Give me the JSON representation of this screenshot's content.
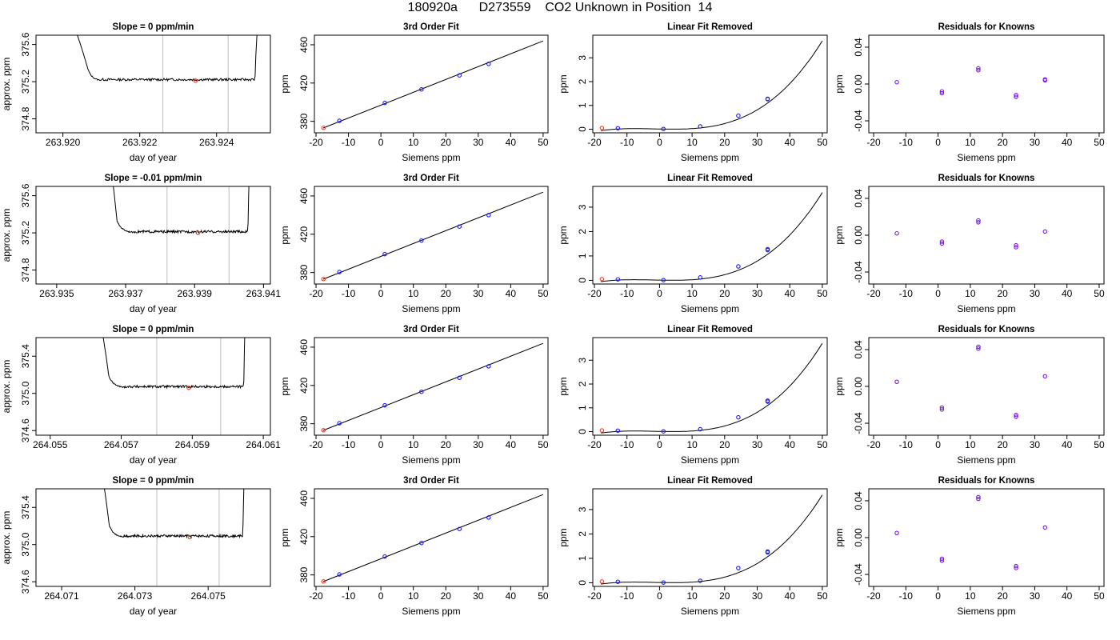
{
  "title": "180920a      D273559    CO2 Unknown in Position  14",
  "colors": {
    "line": "#000000",
    "unknown_point": "#e8402a",
    "known_point": "#1a1aff",
    "residual_point": "#7a1ae8",
    "window_line": "#c8c8c8",
    "frame": "#000000"
  },
  "chart_data": [
    {
      "type": "line",
      "title": "Slope =  0  ppm/min",
      "xlabel": "day of year",
      "ylabel": "approx. ppm",
      "xlim": [
        263.9193,
        263.9254
      ],
      "ylim": [
        374.65,
        375.7
      ],
      "xticks": [
        263.92,
        263.922,
        263.924
      ],
      "xtick_labels": [
        "263.920",
        "263.922",
        "263.924"
      ],
      "yticks": [
        374.8,
        375.2,
        375.6
      ],
      "ytick_labels": [
        "374.8",
        "375.2",
        "375.6"
      ],
      "x_start": 263.92,
      "x_end": 263.9251,
      "plateau": 375.21,
      "drop_x": 263.92065,
      "settle_x": 263.921,
      "rise_x": 263.925,
      "window": [
        263.9226,
        263.9243
      ],
      "marker": [
        263.92345,
        375.21
      ]
    },
    {
      "type": "scatter",
      "title": "3rd Order Fit",
      "xlabel": "Siemens ppm",
      "ylabel": "ppm",
      "xlim": [
        -20.5,
        51.5
      ],
      "ylim": [
        368,
        470
      ],
      "xticks": [
        -20,
        -10,
        0,
        10,
        20,
        30,
        40,
        50
      ],
      "xtick_labels": [
        "-20",
        "-10",
        "0",
        "10",
        "20",
        "30",
        "40",
        "50"
      ],
      "yticks": [
        380,
        420,
        460
      ],
      "ytick_labels": [
        "380",
        "420",
        "460"
      ],
      "fit_line": [
        [
          -17.8,
          373.0
        ],
        [
          50.0,
          464.0
        ]
      ],
      "known_points": [
        [
          -12.8,
          380.5
        ],
        [
          1.2,
          399.2
        ],
        [
          12.5,
          413.4
        ],
        [
          24.2,
          428.0
        ],
        [
          33.2,
          440.0
        ]
      ],
      "unknown_point": [
        -17.7,
        373.2
      ]
    },
    {
      "type": "scatter",
      "title": "Linear Fit Removed",
      "xlabel": "Siemens ppm",
      "ylabel": "ppm",
      "xlim": [
        -20.5,
        51.5
      ],
      "ylim": [
        -0.15,
        3.95
      ],
      "xticks": [
        -20,
        -10,
        0,
        10,
        20,
        30,
        40,
        50
      ],
      "xtick_labels": [
        "-20",
        "-10",
        "0",
        "10",
        "20",
        "30",
        "40",
        "50"
      ],
      "yticks": [
        0,
        1,
        2,
        3
      ],
      "ytick_labels": [
        "0",
        "1",
        "2",
        "3"
      ],
      "curve_coeffs": [
        0.00945,
        -0.00258,
        0.000148,
        2.77e-05
      ],
      "curve_x": [
        -18,
        50
      ],
      "known_points": [
        [
          -12.8,
          0.04
        ],
        [
          1.2,
          0.01
        ],
        [
          12.5,
          0.12
        ],
        [
          24.2,
          0.57
        ],
        [
          33.2,
          1.28
        ],
        [
          33.2,
          1.26
        ]
      ],
      "unknown_point": [
        -17.7,
        0.05
      ]
    },
    {
      "type": "scatter",
      "title": "Residuals for Knowns",
      "xlabel": "Siemens ppm",
      "ylabel": "ppm",
      "xlim": [
        -21.5,
        51.5
      ],
      "ylim": [
        -0.053,
        0.053
      ],
      "xticks": [
        -20,
        -10,
        0,
        10,
        20,
        30,
        40,
        50
      ],
      "xtick_labels": [
        "-20",
        "-10",
        "0",
        "10",
        "20",
        "30",
        "40",
        "50"
      ],
      "yticks": [
        -0.04,
        0.0,
        0.04
      ],
      "ytick_labels": [
        "-0.04",
        "0.00",
        "0.04"
      ],
      "points": [
        [
          -12.8,
          0.002
        ],
        [
          1.2,
          -0.008
        ],
        [
          1.2,
          -0.01
        ],
        [
          12.5,
          0.015
        ],
        [
          12.5,
          0.017
        ],
        [
          24.2,
          -0.012
        ],
        [
          24.2,
          -0.014
        ],
        [
          33.2,
          0.004
        ],
        [
          33.2,
          0.005
        ]
      ]
    },
    {
      "type": "line",
      "title": "Slope =  -0.01  ppm/min",
      "xlabel": "day of year",
      "ylabel": "approx. ppm",
      "xlim": [
        263.9344,
        263.9412
      ],
      "ylim": [
        374.65,
        375.7
      ],
      "xticks": [
        263.935,
        263.937,
        263.939,
        263.941
      ],
      "xtick_labels": [
        "263.935",
        "263.937",
        "263.939",
        "263.941"
      ],
      "yticks": [
        374.8,
        375.2,
        375.6
      ],
      "ytick_labels": [
        "374.8",
        "375.2",
        "375.6"
      ],
      "x_start": 263.9365,
      "x_end": 263.9406,
      "plateau": 375.2,
      "drop_x": 263.93675,
      "settle_x": 263.93725,
      "rise_x": 263.94055,
      "window": [
        263.9382,
        263.94
      ],
      "marker": [
        263.9391,
        375.2
      ]
    },
    {
      "type": "scatter",
      "title": "3rd Order Fit",
      "xlabel": "Siemens ppm",
      "ylabel": "ppm",
      "xlim": [
        -20.5,
        51.5
      ],
      "ylim": [
        368,
        470
      ],
      "xticks": [
        -20,
        -10,
        0,
        10,
        20,
        30,
        40,
        50
      ],
      "xtick_labels": [
        "-20",
        "-10",
        "0",
        "10",
        "20",
        "30",
        "40",
        "50"
      ],
      "yticks": [
        380,
        420,
        460
      ],
      "ytick_labels": [
        "380",
        "420",
        "460"
      ],
      "fit_line": [
        [
          -17.8,
          373.0
        ],
        [
          50.0,
          464.0
        ]
      ],
      "known_points": [
        [
          -12.8,
          380.5
        ],
        [
          1.2,
          399.2
        ],
        [
          12.5,
          413.4
        ],
        [
          24.2,
          428.0
        ],
        [
          33.2,
          440.0
        ]
      ],
      "unknown_point": [
        -17.7,
        373.2
      ]
    },
    {
      "type": "scatter",
      "title": "Linear Fit Removed",
      "xlabel": "Siemens ppm",
      "ylabel": "ppm",
      "xlim": [
        -20.5,
        51.5
      ],
      "ylim": [
        -0.15,
        3.85
      ],
      "xticks": [
        -20,
        -10,
        0,
        10,
        20,
        30,
        40,
        50
      ],
      "xtick_labels": [
        "-20",
        "-10",
        "0",
        "10",
        "20",
        "30",
        "40",
        "50"
      ],
      "yticks": [
        0,
        1,
        2,
        3
      ],
      "ytick_labels": [
        "0",
        "1",
        "2",
        "3"
      ],
      "curve_coeffs": [
        0.00945,
        -0.00258,
        0.000148,
        2.68e-05
      ],
      "curve_x": [
        -18,
        50
      ],
      "known_points": [
        [
          -12.8,
          0.04
        ],
        [
          1.2,
          0.01
        ],
        [
          12.5,
          0.12
        ],
        [
          24.2,
          0.57
        ],
        [
          33.2,
          1.28
        ],
        [
          33.2,
          1.24
        ]
      ],
      "unknown_point": [
        -17.7,
        0.05
      ]
    },
    {
      "type": "scatter",
      "title": "Residuals for Knowns",
      "xlabel": "Siemens ppm",
      "ylabel": "ppm",
      "xlim": [
        -21.5,
        51.5
      ],
      "ylim": [
        -0.053,
        0.053
      ],
      "xticks": [
        -20,
        -10,
        0,
        10,
        20,
        30,
        40,
        50
      ],
      "xtick_labels": [
        "-20",
        "-10",
        "0",
        "10",
        "20",
        "30",
        "40",
        "50"
      ],
      "yticks": [
        -0.04,
        0.0,
        0.04
      ],
      "ytick_labels": [
        "-0.04",
        "0.00",
        "0.04"
      ],
      "points": [
        [
          -12.8,
          0.002
        ],
        [
          1.2,
          -0.007
        ],
        [
          1.2,
          -0.009
        ],
        [
          12.5,
          0.014
        ],
        [
          12.5,
          0.016
        ],
        [
          24.2,
          -0.011
        ],
        [
          24.2,
          -0.013
        ],
        [
          33.2,
          0.004
        ]
      ]
    },
    {
      "type": "line",
      "title": "Slope =  0  ppm/min",
      "xlabel": "day of year",
      "ylabel": "approx. ppm",
      "xlim": [
        264.0546,
        264.0612
      ],
      "ylim": [
        374.55,
        375.6
      ],
      "xticks": [
        264.055,
        264.057,
        264.059,
        264.061
      ],
      "xtick_labels": [
        "264.055",
        "264.057",
        "264.059",
        "264.061"
      ],
      "yticks": [
        374.6,
        375.0,
        375.4
      ],
      "ytick_labels": [
        "374.6",
        "375.0",
        "375.4"
      ],
      "x_start": 264.0563,
      "x_end": 264.0605,
      "plateau": 375.06,
      "drop_x": 264.05665,
      "settle_x": 264.0571,
      "rise_x": 264.06045,
      "window": [
        264.058,
        264.0598
      ],
      "marker": [
        264.0589,
        375.06
      ]
    },
    {
      "type": "scatter",
      "title": "3rd Order Fit",
      "xlabel": "Siemens ppm",
      "ylabel": "ppm",
      "xlim": [
        -20.5,
        51.5
      ],
      "ylim": [
        368,
        470
      ],
      "xticks": [
        -20,
        -10,
        0,
        10,
        20,
        30,
        40,
        50
      ],
      "xtick_labels": [
        "-20",
        "-10",
        "0",
        "10",
        "20",
        "30",
        "40",
        "50"
      ],
      "yticks": [
        380,
        420,
        460
      ],
      "ytick_labels": [
        "380",
        "420",
        "460"
      ],
      "fit_line": [
        [
          -17.8,
          373.0
        ],
        [
          50.0,
          464.0
        ]
      ],
      "known_points": [
        [
          -12.8,
          380.5
        ],
        [
          1.2,
          399.2
        ],
        [
          12.5,
          413.4
        ],
        [
          24.2,
          428.0
        ],
        [
          33.2,
          440.0
        ]
      ],
      "unknown_point": [
        -17.7,
        373.2
      ]
    },
    {
      "type": "scatter",
      "title": "Linear Fit Removed",
      "xlabel": "Siemens ppm",
      "ylabel": "ppm",
      "xlim": [
        -20.5,
        51.5
      ],
      "ylim": [
        -0.15,
        3.95
      ],
      "xticks": [
        -20,
        -10,
        0,
        10,
        20,
        30,
        40,
        50
      ],
      "xtick_labels": [
        "-20",
        "-10",
        "0",
        "10",
        "20",
        "30",
        "40",
        "50"
      ],
      "yticks": [
        0,
        1,
        2,
        3
      ],
      "ytick_labels": [
        "0",
        "1",
        "2",
        "3"
      ],
      "curve_coeffs": [
        0.00945,
        -0.00258,
        0.000148,
        2.77e-05
      ],
      "curve_x": [
        -18,
        50
      ],
      "known_points": [
        [
          -12.8,
          0.04
        ],
        [
          1.2,
          0.01
        ],
        [
          12.5,
          0.1
        ],
        [
          24.2,
          0.6
        ],
        [
          33.2,
          1.3
        ],
        [
          33.2,
          1.26
        ]
      ],
      "unknown_point": [
        -17.7,
        0.05
      ]
    },
    {
      "type": "scatter",
      "title": "Residuals for Knowns",
      "xlabel": "Siemens ppm",
      "ylabel": "ppm",
      "xlim": [
        -21.5,
        51.5
      ],
      "ylim": [
        -0.053,
        0.053
      ],
      "xticks": [
        -20,
        -10,
        0,
        10,
        20,
        30,
        40,
        50
      ],
      "xtick_labels": [
        "-20",
        "-10",
        "0",
        "10",
        "20",
        "30",
        "40",
        "50"
      ],
      "points": [
        [
          -12.8,
          0.005
        ],
        [
          1.2,
          -0.023
        ],
        [
          1.2,
          -0.025
        ],
        [
          12.5,
          0.041
        ],
        [
          12.5,
          0.043
        ],
        [
          24.2,
          -0.031
        ],
        [
          24.2,
          -0.033
        ],
        [
          33.2,
          0.011
        ]
      ],
      "yticks": [
        -0.04,
        0.0,
        0.04
      ],
      "ytick_labels": [
        "-0.04",
        "0.00",
        "0.04"
      ]
    },
    {
      "type": "line",
      "title": "Slope =  0  ppm/min",
      "xlabel": "day of year",
      "ylabel": "approx. ppm",
      "xlim": [
        264.0703,
        264.0767
      ],
      "ylim": [
        374.55,
        375.6
      ],
      "xticks": [
        264.071,
        264.073,
        264.075
      ],
      "xtick_labels": [
        "264.071",
        "264.073",
        "264.075"
      ],
      "yticks": [
        374.6,
        375.0,
        375.4
      ],
      "ytick_labels": [
        "374.6",
        "375.0",
        "375.4"
      ],
      "x_start": 264.072,
      "x_end": 264.076,
      "plateau": 375.08,
      "drop_x": 264.0723,
      "settle_x": 264.0727,
      "rise_x": 264.07595,
      "window": [
        264.0736,
        264.0753
      ],
      "marker": [
        264.0745,
        375.08
      ]
    },
    {
      "type": "scatter",
      "title": "3rd Order Fit",
      "xlabel": "Siemens ppm",
      "ylabel": "ppm",
      "xlim": [
        -20.5,
        51.5
      ],
      "ylim": [
        368,
        470
      ],
      "xticks": [
        -20,
        -10,
        0,
        10,
        20,
        30,
        40,
        50
      ],
      "xtick_labels": [
        "-20",
        "-10",
        "0",
        "10",
        "20",
        "30",
        "40",
        "50"
      ],
      "yticks": [
        380,
        420,
        460
      ],
      "ytick_labels": [
        "380",
        "420",
        "460"
      ],
      "fit_line": [
        [
          -17.8,
          373.0
        ],
        [
          50.0,
          464.0
        ]
      ],
      "known_points": [
        [
          -12.8,
          380.5
        ],
        [
          1.2,
          399.2
        ],
        [
          12.5,
          413.4
        ],
        [
          24.2,
          428.0
        ],
        [
          33.2,
          440.0
        ]
      ],
      "unknown_point": [
        -17.7,
        373.2
      ]
    },
    {
      "type": "scatter",
      "title": "Linear Fit Removed",
      "xlabel": "Siemens ppm",
      "ylabel": "ppm",
      "xlim": [
        -20.5,
        51.5
      ],
      "ylim": [
        -0.15,
        3.85
      ],
      "xticks": [
        -20,
        -10,
        0,
        10,
        20,
        30,
        40,
        50
      ],
      "xtick_labels": [
        "-20",
        "-10",
        "0",
        "10",
        "20",
        "30",
        "40",
        "50"
      ],
      "yticks": [
        0,
        1,
        2,
        3
      ],
      "ytick_labels": [
        "0",
        "1",
        "2",
        "3"
      ],
      "curve_coeffs": [
        0.00945,
        -0.00258,
        0.000148,
        2.68e-05
      ],
      "curve_x": [
        -18,
        50
      ],
      "known_points": [
        [
          -12.8,
          0.04
        ],
        [
          1.2,
          0.01
        ],
        [
          12.5,
          0.08
        ],
        [
          24.2,
          0.6
        ],
        [
          33.2,
          1.28
        ],
        [
          33.2,
          1.24
        ]
      ],
      "unknown_point": [
        -17.7,
        0.05
      ]
    },
    {
      "type": "scatter",
      "title": "Residuals for Knowns",
      "xlabel": "Siemens ppm",
      "ylabel": "ppm",
      "xlim": [
        -21.5,
        51.5
      ],
      "ylim": [
        -0.053,
        0.053
      ],
      "xticks": [
        -20,
        -10,
        0,
        10,
        20,
        30,
        40,
        50
      ],
      "xtick_labels": [
        "-20",
        "-10",
        "0",
        "10",
        "20",
        "30",
        "40",
        "50"
      ],
      "yticks": [
        -0.04,
        0.0,
        0.04
      ],
      "ytick_labels": [
        "-0.04",
        "0.00",
        "0.04"
      ],
      "points": [
        [
          -12.8,
          0.005
        ],
        [
          1.2,
          -0.023
        ],
        [
          1.2,
          -0.025
        ],
        [
          12.5,
          0.042
        ],
        [
          12.5,
          0.044
        ],
        [
          24.2,
          -0.031
        ],
        [
          24.2,
          -0.033
        ],
        [
          33.2,
          0.011
        ]
      ]
    }
  ]
}
